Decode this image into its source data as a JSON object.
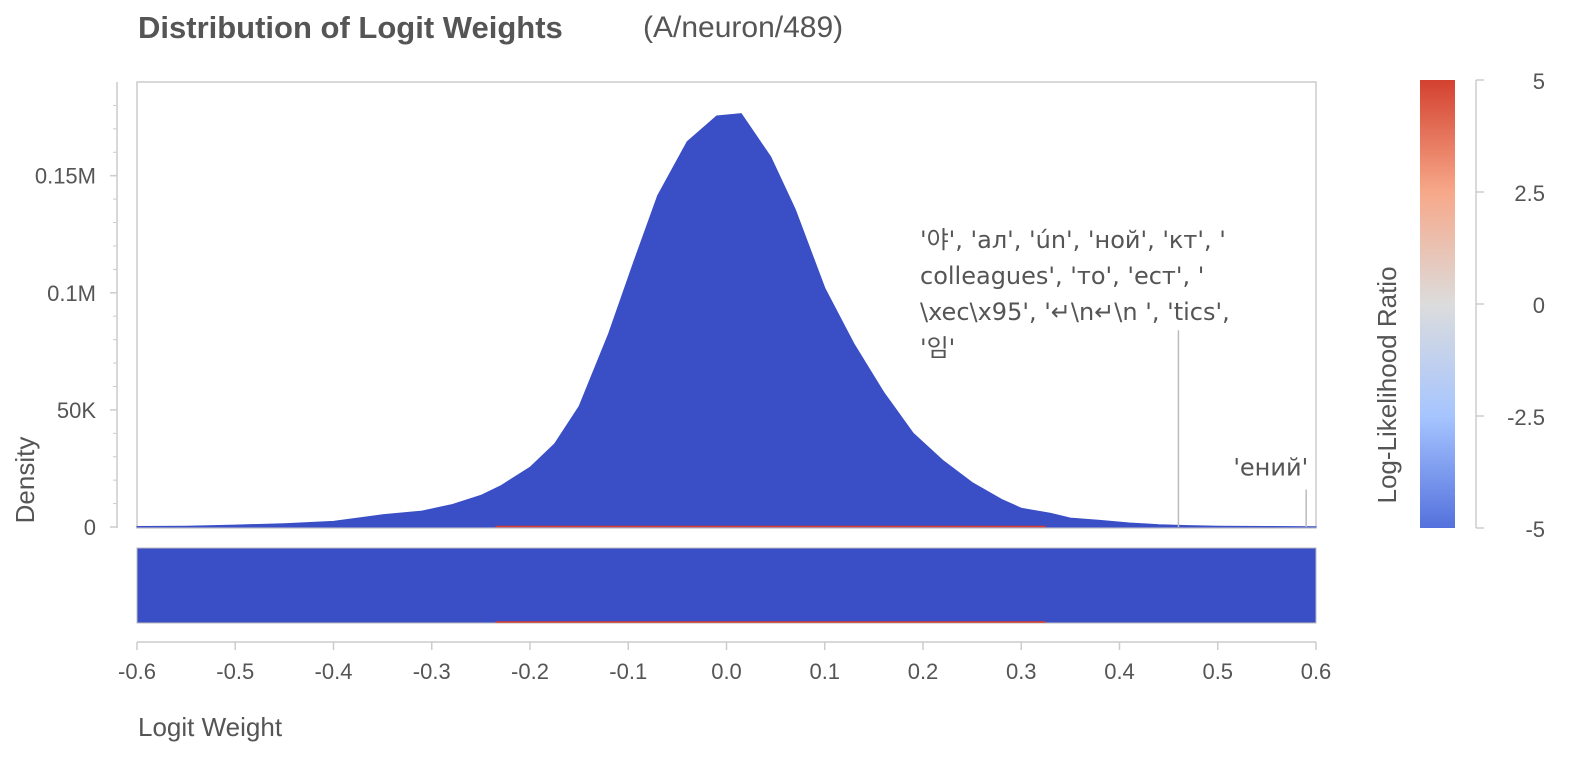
{
  "chart_data": {
    "type": "area",
    "title": "Distribution of Logit Weights",
    "subtitle": "(A/neuron/489)",
    "xlabel": "Logit Weight",
    "ylabel": "Density",
    "xlim": [
      -0.6,
      0.6
    ],
    "ylim": [
      0,
      0.19
    ],
    "x_ticks": [
      -0.6,
      -0.5,
      -0.4,
      -0.3,
      -0.2,
      -0.1,
      0.0,
      0.1,
      0.2,
      0.3,
      0.4,
      0.5,
      0.6
    ],
    "x_tick_labels": [
      "-0.6",
      "-0.5",
      "-0.4",
      "-0.3",
      "-0.2",
      "-0.1",
      "0.0",
      "0.1",
      "0.2",
      "0.3",
      "0.4",
      "0.5",
      "0.6"
    ],
    "y_ticks": [
      0,
      0.05,
      0.1,
      0.15
    ],
    "y_tick_labels": [
      "0",
      "50K",
      "0.1M",
      "0.15M"
    ],
    "series": [
      {
        "color": "#3a4ec6",
        "x": [
          -0.6,
          -0.55,
          -0.5,
          -0.45,
          -0.4,
          -0.38,
          -0.35,
          -0.31,
          -0.28,
          -0.25,
          -0.23,
          -0.2,
          -0.175,
          -0.15,
          -0.12,
          -0.095,
          -0.07,
          -0.04,
          -0.01,
          0.015,
          0.045,
          0.07,
          0.1,
          0.13,
          0.16,
          0.19,
          0.22,
          0.25,
          0.28,
          0.3,
          0.33,
          0.35,
          0.38,
          0.41,
          0.44,
          0.47,
          0.5,
          0.55,
          0.6
        ],
        "values": [
          0.0002,
          0.0003,
          0.0008,
          0.0014,
          0.0024,
          0.0035,
          0.0052,
          0.0068,
          0.0095,
          0.0135,
          0.0175,
          0.0255,
          0.0355,
          0.0515,
          0.0825,
          0.1125,
          0.1415,
          0.1645,
          0.1755,
          0.1765,
          0.158,
          0.1355,
          0.102,
          0.078,
          0.0575,
          0.04,
          0.0285,
          0.019,
          0.0118,
          0.008,
          0.0058,
          0.0038,
          0.0028,
          0.0017,
          0.001,
          0.0006,
          0.0003,
          0.0002,
          0.0001
        ]
      }
    ],
    "red_segment": {
      "color": "#d93a2b",
      "x_range": [
        -0.235,
        0.325
      ]
    },
    "annotations": [
      {
        "x": 0.46,
        "y": 0.084,
        "lines": [
          "'야', 'ал', 'ún', 'ной', 'кт', '",
          "colleagues', 'то', 'ест', '",
          "\\xec\\x95', '↵\\n↵\\n ', 'tics',",
          "'임'"
        ]
      },
      {
        "x": 0.59,
        "y": 0.016,
        "lines": [
          "'ений'"
        ]
      }
    ],
    "colorbar": {
      "label": "Log-Likelihood Ratio",
      "range": [
        -5,
        5
      ],
      "ticks": [
        5,
        2.5,
        0,
        -2.5,
        -5
      ],
      "tick_labels": [
        "5",
        "2.5",
        "0",
        "-2.5",
        "-5"
      ],
      "colors": [
        "#d3412f",
        "#f7a889",
        "#dcdcdc",
        "#a6c5ff",
        "#5471dd"
      ]
    },
    "strip": {
      "color": "#3a4ec6"
    }
  }
}
